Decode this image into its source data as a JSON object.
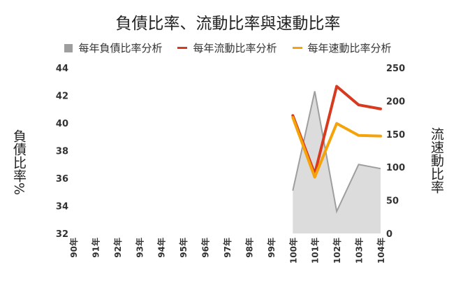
{
  "chart_data": {
    "type": "line",
    "title": "負債比率、流動比率與速動比率",
    "categories": [
      "90年",
      "91年",
      "92年",
      "93年",
      "94年",
      "95年",
      "96年",
      "97年",
      "98年",
      "99年",
      "100年",
      "101年",
      "102年",
      "103年",
      "104年"
    ],
    "y_left": {
      "label": "負債比率%",
      "range": [
        32,
        44
      ],
      "ticks": [
        32,
        34,
        36,
        38,
        40,
        42,
        44
      ]
    },
    "y_right": {
      "label": "流速動比率",
      "range": [
        0,
        250
      ],
      "ticks": [
        0,
        50,
        100,
        150,
        200,
        250
      ]
    },
    "series": [
      {
        "name": "每年負債比率分析",
        "type": "area",
        "axis": "left",
        "color": "#9e9e9e",
        "values": [
          null,
          null,
          null,
          null,
          null,
          null,
          null,
          null,
          null,
          null,
          35.1,
          42.3,
          33.6,
          37.0,
          36.7
        ]
      },
      {
        "name": "每年流動比率分析",
        "type": "line",
        "axis": "right",
        "color": "#d73a1f",
        "values": [
          null,
          null,
          null,
          null,
          null,
          null,
          null,
          null,
          null,
          null,
          178,
          90,
          222,
          194,
          188
        ]
      },
      {
        "name": "每年速動比率分析",
        "type": "line",
        "axis": "right",
        "color": "#f5a30a",
        "values": [
          null,
          null,
          null,
          null,
          null,
          null,
          null,
          null,
          null,
          null,
          175,
          85,
          166,
          148,
          147
        ]
      }
    ],
    "legend_position": "top",
    "grid": false
  }
}
